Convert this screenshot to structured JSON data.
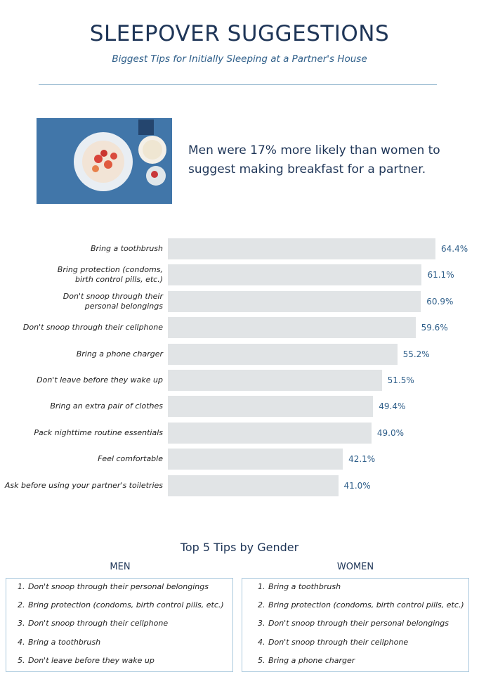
{
  "header": {
    "title": "SLEEPOVER SUGGESTIONS",
    "subtitle": "Biggest Tips for Initially Sleeping at a Partner's House"
  },
  "callout": "Men were 17% more likely than women to suggest making breakfast for a partner.",
  "chart_data": {
    "type": "bar",
    "orientation": "horizontal",
    "color": "#e1e4e6",
    "label_color": "#2f5f8a",
    "categories": [
      "Bring a toothbrush",
      "Bring protection (condoms,\nbirth control pills, etc.)",
      "Don't snoop through their\npersonal belongings",
      "Don't snoop through their cellphone",
      "Bring a phone charger",
      "Don't leave before they wake up",
      "Bring an extra pair of clothes",
      "Pack nighttime routine essentials",
      "Feel comfortable",
      "Ask before using your partner's toiletries"
    ],
    "values": [
      64.4,
      61.1,
      60.9,
      59.6,
      55.2,
      51.5,
      49.4,
      49.0,
      42.1,
      41.0
    ],
    "value_labels": [
      "64.4%",
      "61.1%",
      "60.9%",
      "59.6%",
      "55.2%",
      "51.5%",
      "49.4%",
      "49.0%",
      "42.1%",
      "41.0%"
    ]
  },
  "top_tips": {
    "title": "Top 5 Tips by Gender",
    "men": {
      "heading": "MEN",
      "items": [
        {
          "number": "1.",
          "text": "Don't snoop through their personal belongings"
        },
        {
          "number": "2.",
          "text": "Bring protection (condoms, birth control pills, etc.)"
        },
        {
          "number": "3.",
          "text": "Don't snoop through their cellphone"
        },
        {
          "number": "4.",
          "text": "Bring a toothbrush"
        },
        {
          "number": "5.",
          "text": "Don't leave before they wake up"
        }
      ]
    },
    "women": {
      "heading": "WOMEN",
      "items": [
        {
          "number": "1.",
          "text": "Bring a toothbrush"
        },
        {
          "number": "2.",
          "text": "Bring protection (condoms, birth control pills, etc.)"
        },
        {
          "number": "3.",
          "text": "Don't snoop through their personal belongings"
        },
        {
          "number": "4.",
          "text": "Don't snoop through their cellphone"
        },
        {
          "number": "5.",
          "text": "Bring a phone charger"
        }
      ]
    }
  }
}
